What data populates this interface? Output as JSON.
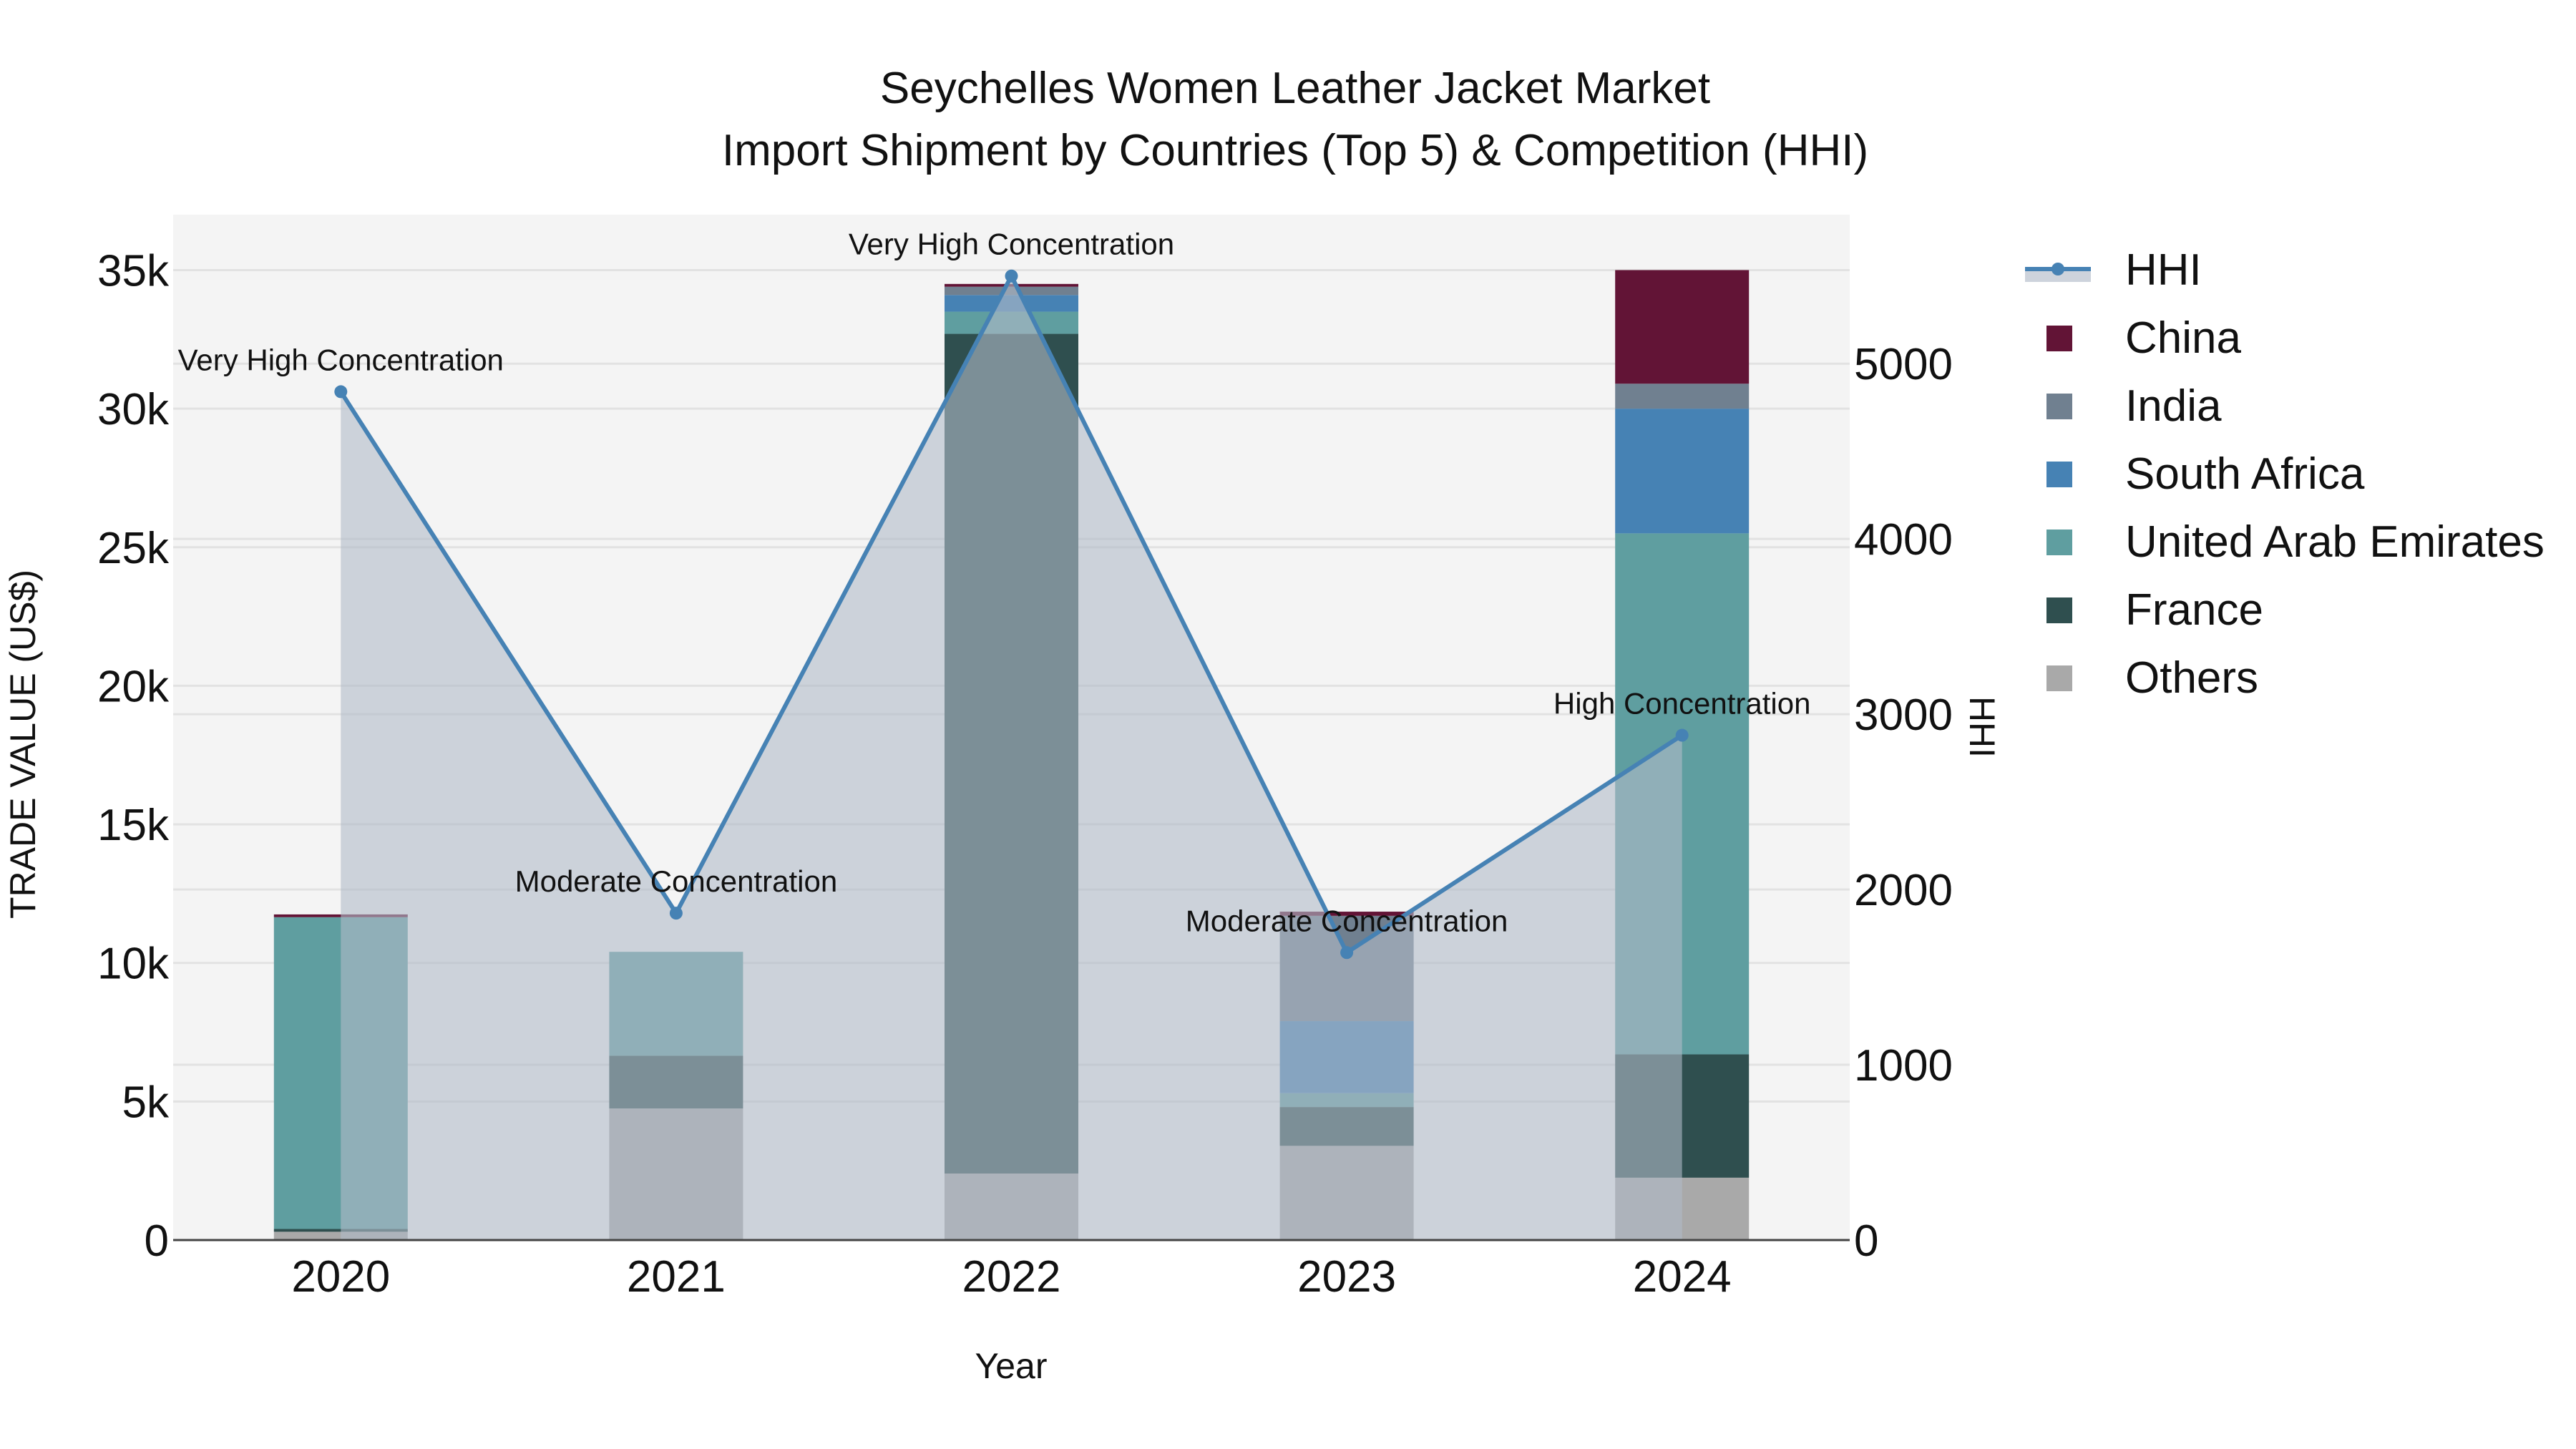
{
  "title": {
    "line1": "Seychelles Women Leather Jacket Market",
    "line2": "Import Shipment by Countries (Top 5) & Competition (HHI)"
  },
  "axes": {
    "x_title": "Year",
    "y_left_title": "TRADE VALUE (US$)",
    "y_right_title": "HHI",
    "y_left_ticks": [
      "0",
      "5k",
      "10k",
      "15k",
      "20k",
      "25k",
      "30k",
      "35k"
    ],
    "y_right_ticks": [
      "0",
      "1000",
      "2000",
      "3000",
      "4000",
      "5000"
    ]
  },
  "legend": {
    "items": [
      {
        "label": "HHI",
        "type": "line",
        "color": "#4682B4"
      },
      {
        "label": "China",
        "type": "box",
        "color": "#621436"
      },
      {
        "label": "India",
        "type": "box",
        "color": "#708090"
      },
      {
        "label": "South Africa",
        "type": "box",
        "color": "#4682B4"
      },
      {
        "label": "United Arab Emirates",
        "type": "box",
        "color": "#5F9EA0"
      },
      {
        "label": "France",
        "type": "box",
        "color": "#2F4F4F"
      },
      {
        "label": "Others",
        "type": "box",
        "color": "#A9A9A9"
      }
    ]
  },
  "chart_data": {
    "type": "bar",
    "stacked": true,
    "title": "Seychelles Women Leather Jacket Market — Import Shipment by Countries (Top 5) & Competition (HHI)",
    "xlabel": "Year",
    "ylabel": "TRADE VALUE (US$)",
    "y2label": "HHI",
    "categories": [
      "2020",
      "2021",
      "2022",
      "2023",
      "2024"
    ],
    "ylim": [
      0,
      37000
    ],
    "y2lim": [
      0,
      5850
    ],
    "grid": true,
    "legend_position": "right",
    "series": [
      {
        "name": "Others",
        "color": "#A9A9A9",
        "values": [
          300,
          4750,
          2400,
          3400,
          2250
        ]
      },
      {
        "name": "France",
        "color": "#2F4F4F",
        "values": [
          100,
          1900,
          30300,
          1400,
          4450
        ]
      },
      {
        "name": "United Arab Emirates",
        "color": "#5F9EA0",
        "values": [
          11250,
          3750,
          800,
          500,
          18800
        ]
      },
      {
        "name": "South Africa",
        "color": "#4682B4",
        "values": [
          0,
          0,
          600,
          2600,
          4500
        ]
      },
      {
        "name": "India",
        "color": "#708090",
        "values": [
          0,
          0,
          300,
          3800,
          900
        ]
      },
      {
        "name": "China",
        "color": "#621436",
        "values": [
          100,
          0,
          100,
          150,
          4100
        ]
      }
    ],
    "line_series": {
      "name": "HHI",
      "axis": "y2",
      "color": "#4682B4",
      "fill": "tozeroy",
      "values": [
        4840,
        1865,
        5500,
        1640,
        2880
      ],
      "annotations": [
        "Very High Concentration",
        "Moderate Concentration",
        "Very High Concentration",
        "Moderate Concentration",
        "High Concentration"
      ]
    }
  }
}
